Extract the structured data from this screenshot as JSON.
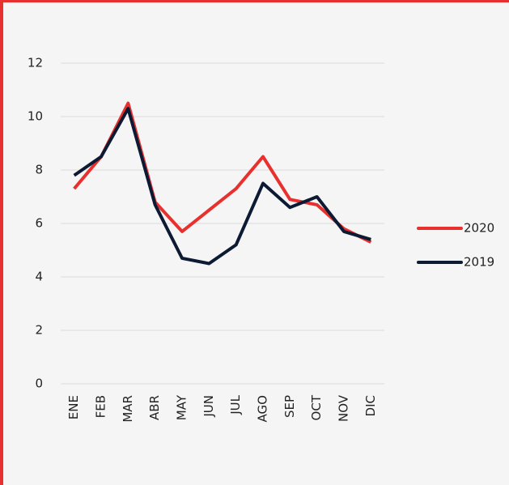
{
  "chart_data": {
    "type": "line",
    "categories": [
      "ENE",
      "FEB",
      "MAR",
      "ABR",
      "MAY",
      "JUN",
      "JUL",
      "AGO",
      "SEP",
      "OCT",
      "NOV",
      "DIC"
    ],
    "series": [
      {
        "name": "2020",
        "color": "#e8312f",
        "values": [
          7.3,
          8.5,
          10.5,
          6.8,
          5.7,
          6.5,
          7.3,
          8.5,
          6.9,
          6.7,
          5.8,
          5.3
        ]
      },
      {
        "name": "2019",
        "color": "#0d1a33",
        "values": [
          7.8,
          8.5,
          10.3,
          6.7,
          4.7,
          4.5,
          5.2,
          7.5,
          6.6,
          7.0,
          5.7,
          5.4
        ]
      }
    ],
    "ylim": [
      0,
      12
    ],
    "yticks": [
      0,
      2,
      4,
      6,
      8,
      10,
      12
    ],
    "grid": true,
    "legend": "right"
  }
}
